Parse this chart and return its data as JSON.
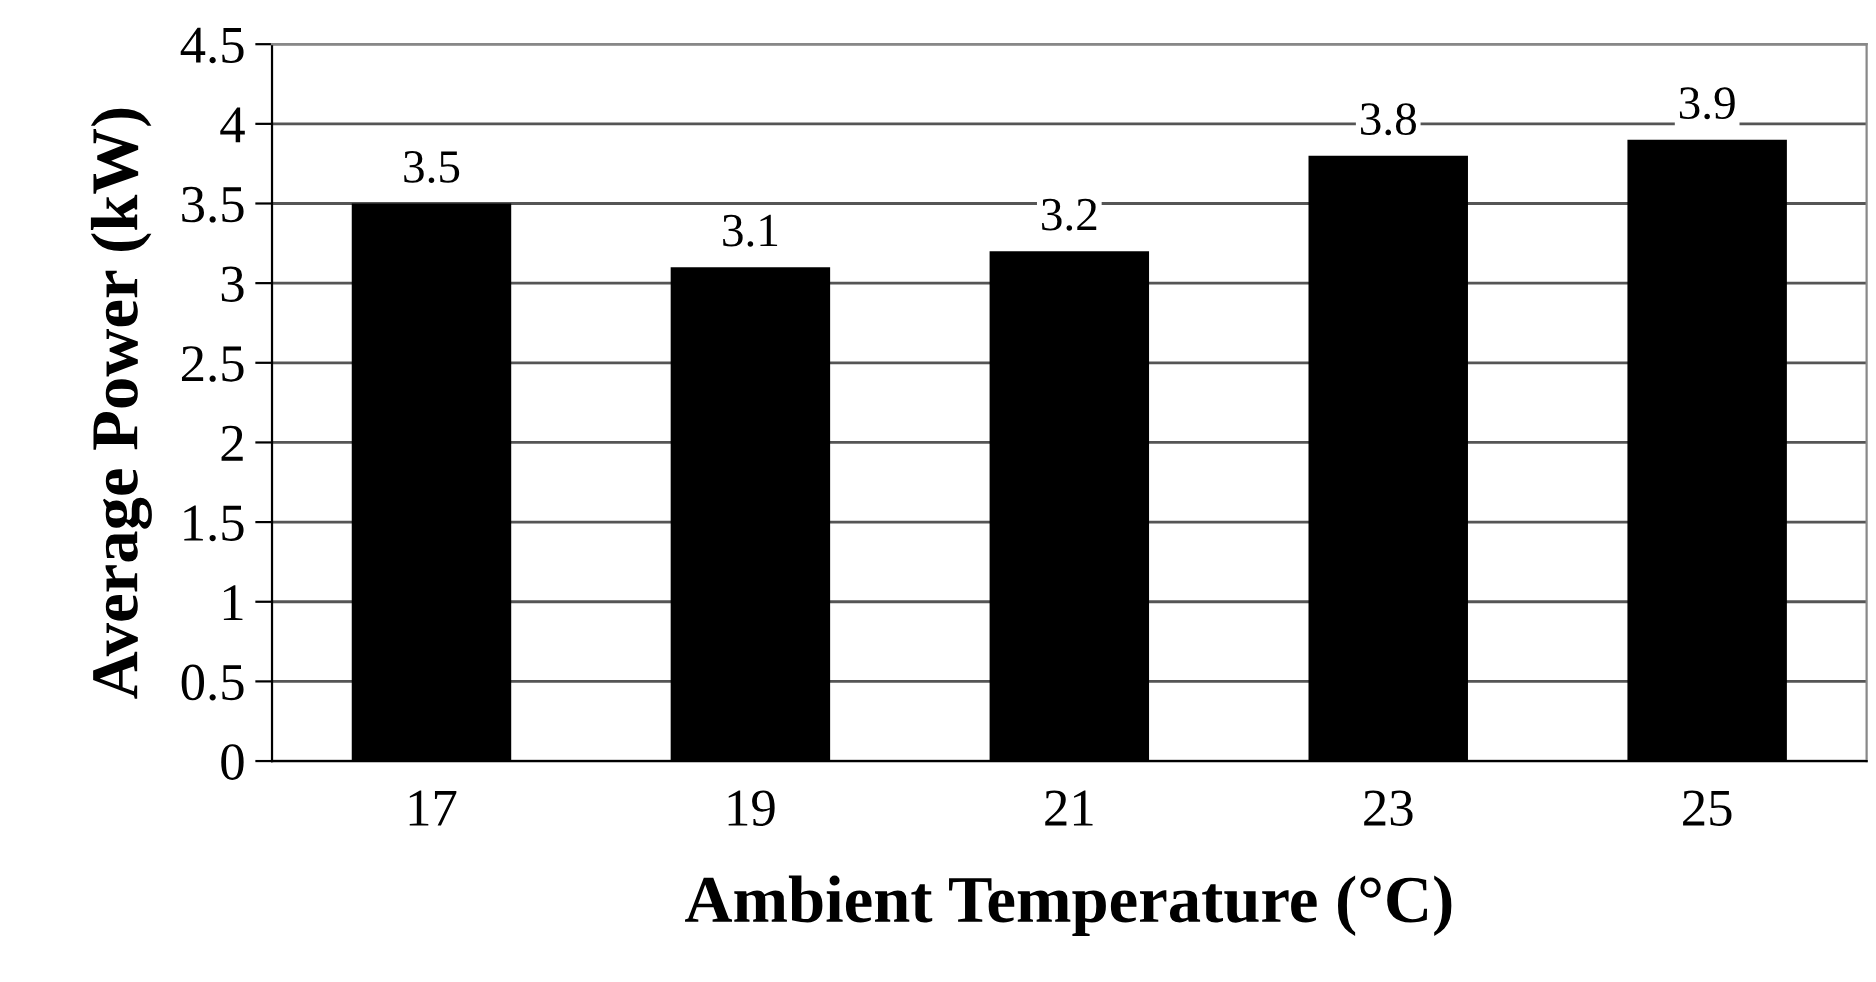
{
  "chart_data": {
    "type": "bar",
    "xlabel": "Ambient Temperature (°C)",
    "ylabel": "Average Power (kW)",
    "categories": [
      "17",
      "19",
      "21",
      "23",
      "25"
    ],
    "values": [
      3.5,
      3.1,
      3.2,
      3.8,
      3.9
    ],
    "color": "#000000",
    "ylim": [
      0,
      4.5
    ],
    "yticks": [
      0,
      0.5,
      1,
      1.5,
      2,
      2.5,
      3,
      3.5,
      4,
      4.5
    ],
    "grid": "y",
    "data_labels": true
  }
}
